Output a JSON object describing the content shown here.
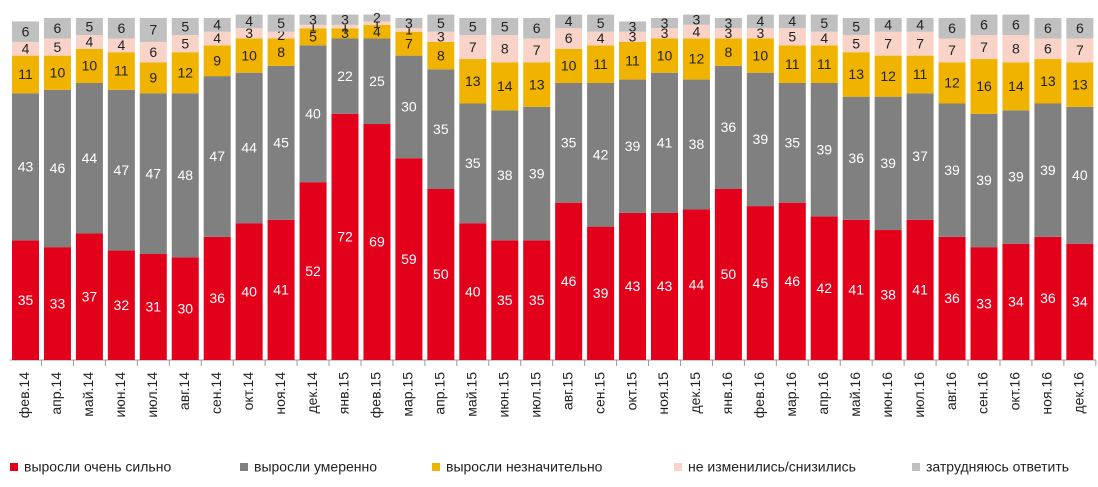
{
  "chart_data": {
    "type": "stacked_bar",
    "categories": [
      "фев.14",
      "апр.14",
      "май.14",
      "июн.14",
      "июл.14",
      "авг.14",
      "сен.14",
      "окт.14",
      "ноя.14",
      "дек.14",
      "янв.15",
      "фев.15",
      "мар.15",
      "апр.15",
      "май.15",
      "июн.15",
      "июл.15",
      "авг.15",
      "сен.15",
      "окт.15",
      "ноя.15",
      "дек.15",
      "янв.16",
      "фев.16",
      "мар.16",
      "апр.16",
      "май.16",
      "июн.16",
      "июл.16",
      "авг.16",
      "сен.16",
      "окт.16",
      "ноя.16",
      "дек.16"
    ],
    "series": [
      {
        "name": "выросли очень сильно",
        "color": "#e2001a",
        "values": [
          35,
          33,
          37,
          32,
          31,
          30,
          36,
          40,
          41,
          52,
          72,
          69,
          59,
          50,
          40,
          35,
          35,
          46,
          39,
          43,
          43,
          44,
          50,
          45,
          46,
          42,
          41,
          38,
          41,
          36,
          33,
          34,
          36,
          34
        ]
      },
      {
        "name": "выросли умеренно",
        "color": "#808080",
        "values": [
          43,
          46,
          44,
          47,
          47,
          48,
          47,
          44,
          45,
          40,
          22,
          25,
          30,
          35,
          35,
          38,
          39,
          35,
          42,
          39,
          41,
          38,
          36,
          39,
          35,
          39,
          36,
          39,
          37,
          39,
          39,
          39,
          39,
          40
        ]
      },
      {
        "name": "выросли незначительно",
        "color": "#f0b400",
        "values": [
          11,
          10,
          10,
          11,
          9,
          12,
          9,
          10,
          8,
          5,
          3,
          4,
          7,
          8,
          13,
          14,
          13,
          10,
          11,
          11,
          10,
          12,
          8,
          10,
          11,
          11,
          13,
          12,
          11,
          12,
          16,
          14,
          13,
          13
        ]
      },
      {
        "name": "не изменились/снизились",
        "color": "#f9d3c8",
        "values": [
          4,
          5,
          4,
          4,
          6,
          5,
          4,
          3,
          2,
          1,
          1,
          1,
          1,
          3,
          7,
          8,
          7,
          6,
          4,
          3,
          3,
          4,
          3,
          3,
          5,
          4,
          5,
          7,
          7,
          7,
          7,
          8,
          6,
          7
        ]
      },
      {
        "name": "затрудняюсь ответить",
        "color": "#c0c0c0",
        "values": [
          6,
          6,
          5,
          6,
          7,
          5,
          4,
          4,
          5,
          3,
          3,
          2,
          3,
          5,
          5,
          5,
          6,
          4,
          5,
          3,
          3,
          3,
          3,
          4,
          4,
          5,
          5,
          4,
          4,
          6,
          6,
          6,
          6,
          6
        ]
      }
    ]
  }
}
